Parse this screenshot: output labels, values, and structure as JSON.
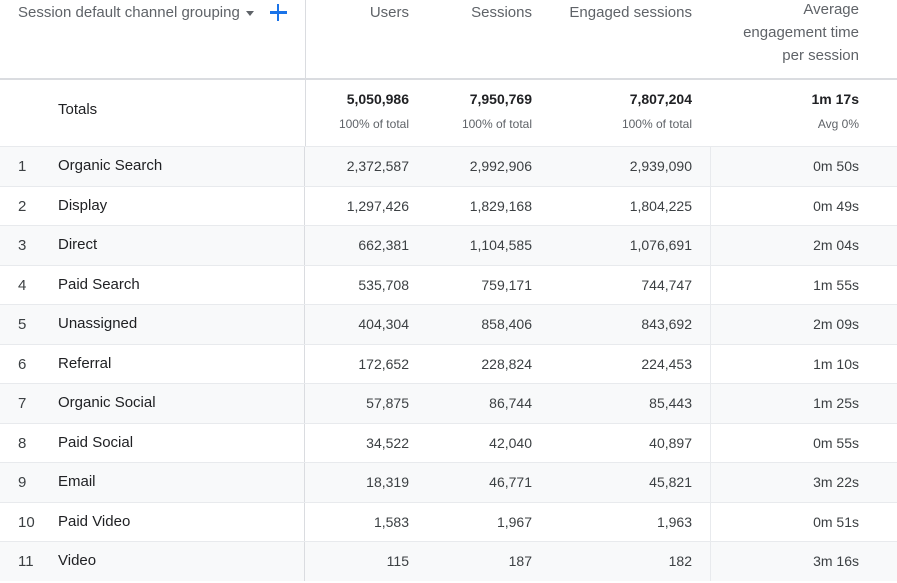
{
  "header": {
    "dimension_label": "Session default channel grouping",
    "columns": [
      {
        "label": "Users"
      },
      {
        "label": "Sessions"
      },
      {
        "label": "Engaged sessions"
      },
      {
        "label_lines": [
          "Average",
          "engagement time",
          "per session"
        ]
      }
    ]
  },
  "totals": {
    "label": "Totals",
    "users": "5,050,986",
    "users_sub": "100% of total",
    "sessions": "7,950,769",
    "sessions_sub": "100% of total",
    "engaged": "7,807,204",
    "engaged_sub": "100% of total",
    "avg_time": "1m 17s",
    "avg_time_sub": "Avg 0%"
  },
  "rows": [
    {
      "index": "1",
      "channel": "Organic Search",
      "users": "2,372,587",
      "sessions": "2,992,906",
      "engaged": "2,939,090",
      "avg_time": "0m 50s"
    },
    {
      "index": "2",
      "channel": "Display",
      "users": "1,297,426",
      "sessions": "1,829,168",
      "engaged": "1,804,225",
      "avg_time": "0m 49s"
    },
    {
      "index": "3",
      "channel": "Direct",
      "users": "662,381",
      "sessions": "1,104,585",
      "engaged": "1,076,691",
      "avg_time": "2m 04s"
    },
    {
      "index": "4",
      "channel": "Paid Search",
      "users": "535,708",
      "sessions": "759,171",
      "engaged": "744,747",
      "avg_time": "1m 55s"
    },
    {
      "index": "5",
      "channel": "Unassigned",
      "users": "404,304",
      "sessions": "858,406",
      "engaged": "843,692",
      "avg_time": "2m 09s"
    },
    {
      "index": "6",
      "channel": "Referral",
      "users": "172,652",
      "sessions": "228,824",
      "engaged": "224,453",
      "avg_time": "1m 10s"
    },
    {
      "index": "7",
      "channel": "Organic Social",
      "users": "57,875",
      "sessions": "86,744",
      "engaged": "85,443",
      "avg_time": "1m 25s"
    },
    {
      "index": "8",
      "channel": "Paid Social",
      "users": "34,522",
      "sessions": "42,040",
      "engaged": "40,897",
      "avg_time": "0m 55s"
    },
    {
      "index": "9",
      "channel": "Email",
      "users": "18,319",
      "sessions": "46,771",
      "engaged": "45,821",
      "avg_time": "3m 22s"
    },
    {
      "index": "10",
      "channel": "Paid Video",
      "users": "1,583",
      "sessions": "1,967",
      "engaged": "1,963",
      "avg_time": "0m 51s"
    },
    {
      "index": "11",
      "channel": "Video",
      "users": "115",
      "sessions": "187",
      "engaged": "182",
      "avg_time": "3m 16s"
    }
  ],
  "colors": {
    "accent": "#1a73e8",
    "header_text": "#5f6368",
    "row_shade": "#f8f9fa",
    "divider": "#dadce0"
  }
}
